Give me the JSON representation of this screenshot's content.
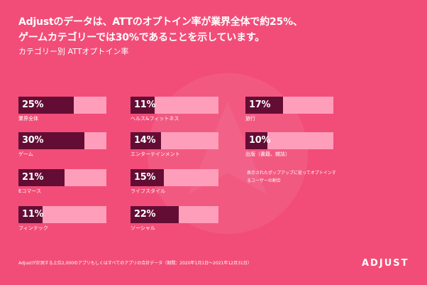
{
  "headline": {
    "line1": "Adjustのデータは、ATTのオプトイン率が業界全体で約25%、",
    "line2": "ゲームカテゴリーでは30%であることを示しています。"
  },
  "subtitle": "カテゴリー別 ATTオプトイン率",
  "colors": {
    "background": "#f24d78",
    "bar_fill": "#630d35",
    "bar_track": "#ff9ebb",
    "text": "#ffffff"
  },
  "chart_data": {
    "type": "bar",
    "title": "カテゴリー別 ATTオプトイン率",
    "ylim": [
      0,
      40
    ],
    "categories": [
      "業界全体",
      "ゲーム",
      "Eコマース",
      "フィンテック",
      "ヘルス&フィットネス",
      "エンターテインメント",
      "ライフスタイル",
      "ソーシャル",
      "旅行",
      "出版（書籍、雑誌）"
    ],
    "values": [
      25,
      30,
      21,
      11,
      11,
      14,
      15,
      22,
      17,
      10
    ],
    "value_labels": [
      "25%",
      "30%",
      "21%",
      "11%",
      "11%",
      "14%",
      "15%",
      "22%",
      "17%",
      "10%"
    ]
  },
  "note": "表示されたポップアップに従ってオプトインするユーザーの割合",
  "footnote": "Adjustが計測する上位2,000のアプリもしくはすべてのアプリの合計データ（期間：2020年1月1日〜2021年12月31日）",
  "logo_text": "ADJUST"
}
